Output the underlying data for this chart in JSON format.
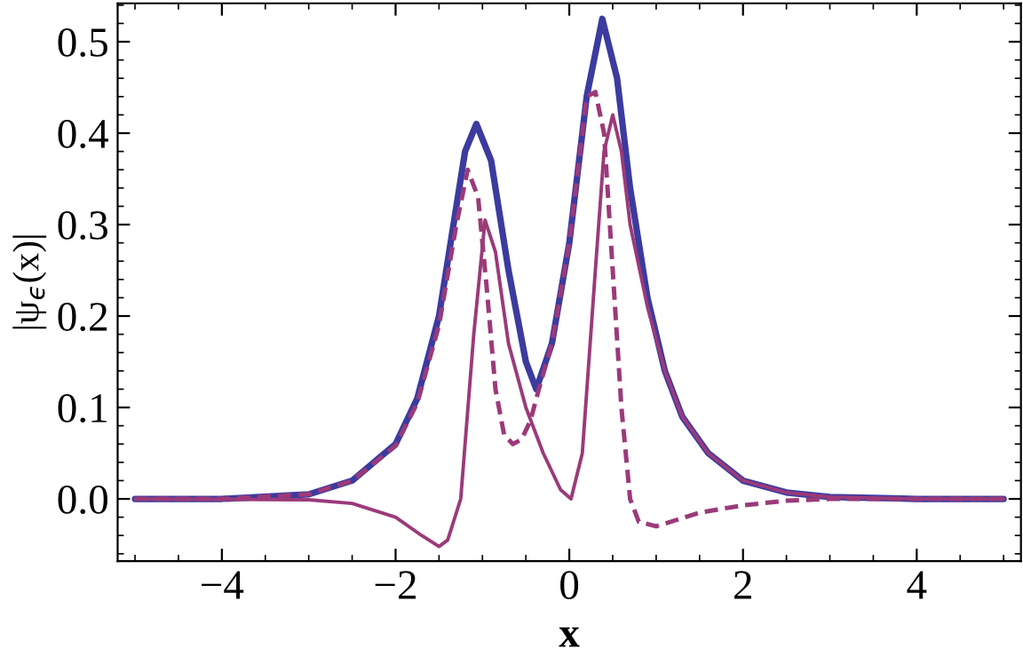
{
  "chart_data": {
    "type": "line",
    "xlabel": "x",
    "ylabel": "|ψ$_{ϵ}$(x)|",
    "xlim": [
      -5.2,
      5.2
    ],
    "ylim": [
      -0.068,
      0.542
    ],
    "xticks": [
      {
        "value": -4,
        "label": "−4"
      },
      {
        "value": -2,
        "label": "−2"
      },
      0,
      2,
      4
    ],
    "yticks": [
      {
        "value": 0,
        "label": "0.0"
      },
      0.1,
      0.2,
      0.3,
      0.4,
      0.5
    ],
    "grid": false,
    "legend": false,
    "marker": "none",
    "series": [
      {
        "color": "#9b3a7a",
        "line_style": "dashed",
        "x": [
          -5,
          -4,
          -3,
          -2.5,
          -2,
          -1.75,
          -1.5,
          -1.3,
          -1.17,
          -1.05,
          -0.95,
          -0.85,
          -0.75,
          -0.65,
          -0.55,
          -0.45,
          -0.35,
          -0.2,
          0,
          0.2,
          0.3,
          0.4,
          0.5,
          0.6,
          0.7,
          0.8,
          1.0,
          1.5,
          2,
          2.5,
          3,
          4,
          5
        ],
        "values": [
          0,
          0,
          0.005,
          0.02,
          0.058,
          0.105,
          0.19,
          0.3,
          0.36,
          0.33,
          0.23,
          0.12,
          0.07,
          0.06,
          0.065,
          0.085,
          0.12,
          0.17,
          0.28,
          0.44,
          0.445,
          0.4,
          0.25,
          0.1,
          0.0,
          -0.025,
          -0.03,
          -0.015,
          -0.007,
          -0.002,
          0,
          0,
          0
        ]
      },
      {
        "color": "#9b3a7a",
        "line_style": "solid",
        "x": [
          -5,
          -3,
          -2.5,
          -2,
          -1.7,
          -1.5,
          -1.4,
          -1.25,
          -1.1,
          -0.97,
          -0.85,
          -0.7,
          -0.5,
          -0.3,
          -0.1,
          0.02,
          0.15,
          0.3,
          0.4,
          0.5,
          0.6,
          0.7,
          0.9,
          1.1,
          1.3,
          1.6,
          2,
          2.5,
          3,
          4,
          5
        ],
        "values": [
          0,
          -0.001,
          -0.005,
          -0.02,
          -0.04,
          -0.052,
          -0.045,
          0.0,
          0.18,
          0.305,
          0.27,
          0.17,
          0.1,
          0.05,
          0.01,
          0.0,
          0.05,
          0.25,
          0.38,
          0.42,
          0.38,
          0.3,
          0.21,
          0.14,
          0.09,
          0.05,
          0.02,
          0.007,
          0.002,
          0,
          0
        ]
      },
      {
        "color": "#3b3ba0",
        "line_style": "solid",
        "x": [
          -5,
          -4,
          -3,
          -2.5,
          -2,
          -1.75,
          -1.5,
          -1.3,
          -1.2,
          -1.07,
          -0.9,
          -0.7,
          -0.5,
          -0.38,
          -0.2,
          0,
          0.2,
          0.38,
          0.55,
          0.7,
          0.9,
          1.1,
          1.3,
          1.6,
          2,
          2.5,
          3,
          4,
          5
        ],
        "values": [
          0,
          0,
          0.005,
          0.02,
          0.06,
          0.11,
          0.2,
          0.32,
          0.38,
          0.41,
          0.37,
          0.25,
          0.15,
          0.12,
          0.17,
          0.28,
          0.44,
          0.525,
          0.46,
          0.34,
          0.22,
          0.14,
          0.09,
          0.05,
          0.02,
          0.007,
          0.002,
          0,
          0
        ]
      }
    ]
  }
}
